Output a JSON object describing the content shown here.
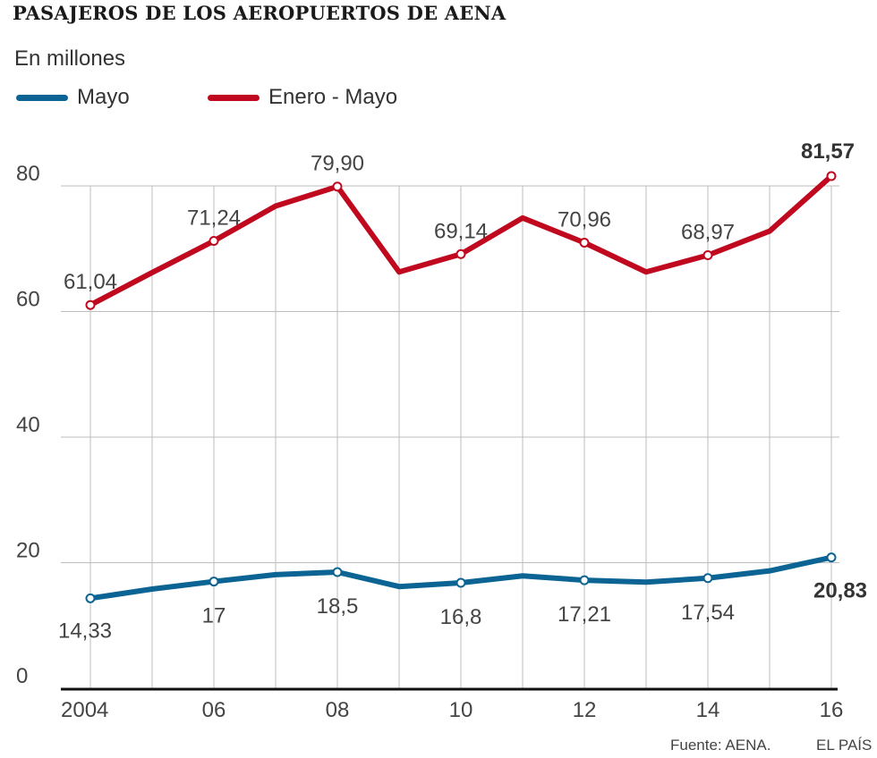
{
  "chart_data": {
    "type": "line",
    "title": "PASAJEROS DE LOS AEROPUERTOS DE AENA",
    "subtitle": "En millones",
    "x": [
      2004,
      2005,
      2006,
      2007,
      2008,
      2009,
      2010,
      2011,
      2012,
      2013,
      2014,
      2015,
      2016
    ],
    "x_tick_values": [
      2004,
      2006,
      2008,
      2010,
      2012,
      2014,
      2016
    ],
    "x_tick_labels": [
      "2004",
      "06",
      "08",
      "10",
      "12",
      "14",
      "16"
    ],
    "y_ticks": [
      0,
      20,
      40,
      60,
      80
    ],
    "y_tick_labels": [
      "0",
      "20",
      "40",
      "60",
      "80"
    ],
    "ylim": [
      0,
      80
    ],
    "grid": true,
    "series": [
      {
        "name": "Mayo",
        "color": "#0b6493",
        "values": [
          14.33,
          15.8,
          17.0,
          18.1,
          18.5,
          16.2,
          16.8,
          17.9,
          17.21,
          16.9,
          17.54,
          18.7,
          20.83
        ],
        "labeled_points": [
          {
            "x": 2004,
            "label": "14,33"
          },
          {
            "x": 2006,
            "label": "17"
          },
          {
            "x": 2008,
            "label": "18,5"
          },
          {
            "x": 2010,
            "label": "16,8"
          },
          {
            "x": 2012,
            "label": "17,21"
          },
          {
            "x": 2014,
            "label": "17,54"
          },
          {
            "x": 2016,
            "label": "20,83",
            "bold": true
          }
        ]
      },
      {
        "name": "Enero - Mayo",
        "color": "#c0081f",
        "values": [
          61.04,
          66.2,
          71.24,
          76.8,
          79.9,
          66.3,
          69.14,
          74.9,
          70.96,
          66.3,
          68.97,
          72.8,
          81.57
        ],
        "labeled_points": [
          {
            "x": 2004,
            "label": "61,04"
          },
          {
            "x": 2006,
            "label": "71,24"
          },
          {
            "x": 2008,
            "label": "79,90"
          },
          {
            "x": 2010,
            "label": "69,14"
          },
          {
            "x": 2012,
            "label": "70,96"
          },
          {
            "x": 2014,
            "label": "68,97"
          },
          {
            "x": 2016,
            "label": "81,57",
            "bold": true
          }
        ]
      }
    ],
    "source": "Fuente: AENA.",
    "brand": "EL PAÍS"
  }
}
